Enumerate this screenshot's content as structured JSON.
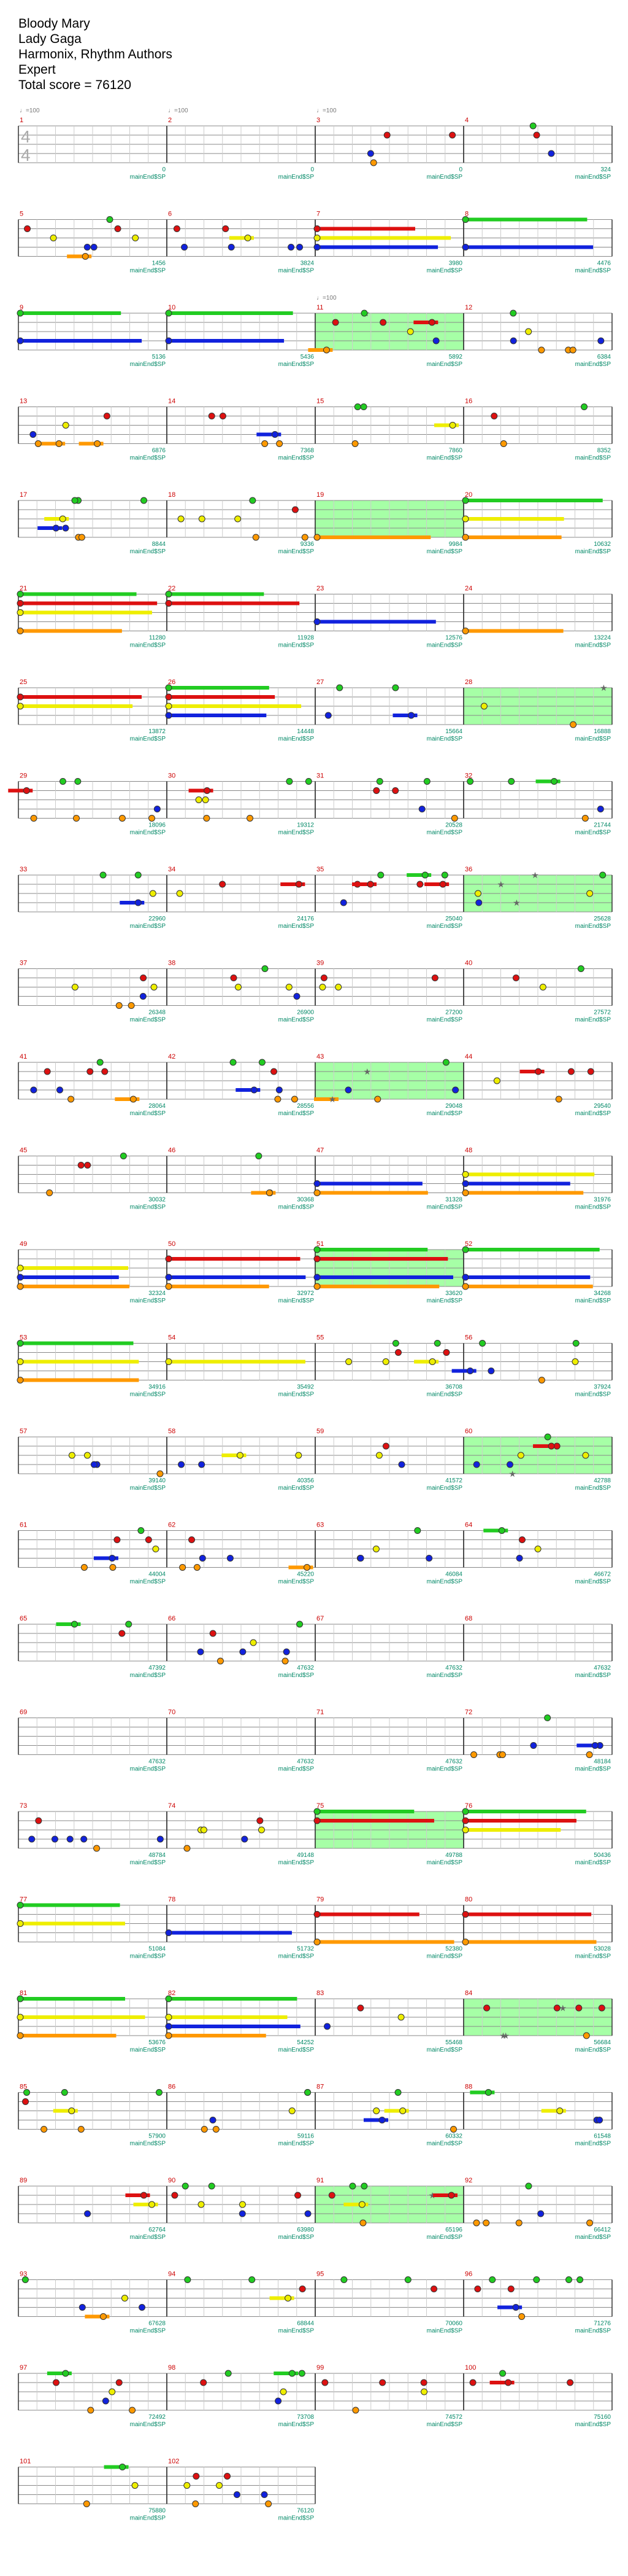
{
  "song": {
    "title": "Bloody Mary",
    "artist": "Lady Gaga",
    "charter": "Harmonix, Rhythm Authors",
    "difficulty": "Expert",
    "total_score_label": "Total score = 76120"
  },
  "notation": {
    "time_signature": [
      "4",
      "4"
    ],
    "tempo_label": "♩=100",
    "spotlight_label": "mainEnd$SP"
  },
  "colors": {
    "green": "#22cc22",
    "red": "#dd1111",
    "yellow": "#eeee00",
    "blue": "#1122dd",
    "orange": "#ff9900",
    "star_power": "#88ff88",
    "measure_number": "#cc0000",
    "score_text": "#008866",
    "tick_text": "#999999"
  },
  "measures": [
    {
      "n": 1,
      "score": 0,
      "tempo": true
    },
    {
      "n": 2,
      "score": 0,
      "tempo": true
    },
    {
      "n": 3,
      "score": 0,
      "tempo": true,
      "notes": "x"
    },
    {
      "n": 4,
      "score": 324,
      "notes": "x"
    },
    {
      "n": 5,
      "score": 1456,
      "notes": "x"
    },
    {
      "n": 6,
      "score": 3824,
      "notes": "x"
    },
    {
      "n": 7,
      "score": 3980,
      "notes": "s"
    },
    {
      "n": 8,
      "score": 4476,
      "notes": "s"
    },
    {
      "n": 9,
      "score": 5136,
      "notes": "s"
    },
    {
      "n": 10,
      "score": 5436,
      "notes": "s"
    },
    {
      "n": 11,
      "score": 5892,
      "tempo": true,
      "sp": true,
      "notes": "x"
    },
    {
      "n": 12,
      "score": 6384,
      "notes": "x"
    },
    {
      "n": 13,
      "score": 6876,
      "notes": "x"
    },
    {
      "n": 14,
      "score": 7368,
      "notes": "x"
    },
    {
      "n": 15,
      "score": 7860,
      "notes": "x"
    },
    {
      "n": 16,
      "score": 8352,
      "notes": "x"
    },
    {
      "n": 17,
      "score": 8844,
      "notes": "x"
    },
    {
      "n": 18,
      "score": 9336,
      "notes": "x"
    },
    {
      "n": 19,
      "score": 9984,
      "sp": true,
      "notes": "s"
    },
    {
      "n": 20,
      "score": 10632,
      "notes": "s"
    },
    {
      "n": 21,
      "score": 11280,
      "notes": "s"
    },
    {
      "n": 22,
      "score": 11928,
      "notes": "s"
    },
    {
      "n": 23,
      "score": 12576,
      "notes": "s"
    },
    {
      "n": 24,
      "score": 13224,
      "notes": "s"
    },
    {
      "n": 25,
      "score": 13872,
      "notes": "s"
    },
    {
      "n": 26,
      "score": 14448,
      "notes": "s"
    },
    {
      "n": 27,
      "score": 15664,
      "notes": "x"
    },
    {
      "n": 28,
      "score": 16888,
      "sp": true,
      "notes": "x"
    },
    {
      "n": 29,
      "score": 18096,
      "notes": "x"
    },
    {
      "n": 30,
      "score": 19312,
      "notes": "x"
    },
    {
      "n": 31,
      "score": 20528,
      "notes": "x"
    },
    {
      "n": 32,
      "score": 21744,
      "notes": "x"
    },
    {
      "n": 33,
      "score": 22960,
      "notes": "x"
    },
    {
      "n": 34,
      "score": 24176,
      "notes": "x"
    },
    {
      "n": 35,
      "score": 25040,
      "notes": "x"
    },
    {
      "n": 36,
      "score": 25628,
      "sp": true,
      "notes": "x"
    },
    {
      "n": 37,
      "score": 26348,
      "notes": "x"
    },
    {
      "n": 38,
      "score": 26900,
      "notes": "x"
    },
    {
      "n": 39,
      "score": 27200,
      "notes": "x"
    },
    {
      "n": 40,
      "score": 27572,
      "notes": "x"
    },
    {
      "n": 41,
      "score": 28064,
      "notes": "x"
    },
    {
      "n": 42,
      "score": 28556,
      "notes": "x"
    },
    {
      "n": 43,
      "score": 29048,
      "sp": true,
      "notes": "x"
    },
    {
      "n": 44,
      "score": 29540,
      "notes": "x"
    },
    {
      "n": 45,
      "score": 30032,
      "notes": "x"
    },
    {
      "n": 46,
      "score": 30368,
      "notes": "x"
    },
    {
      "n": 47,
      "score": 31328,
      "notes": "s"
    },
    {
      "n": 48,
      "score": 31976,
      "notes": "s"
    },
    {
      "n": 49,
      "score": 32324,
      "notes": "s"
    },
    {
      "n": 50,
      "score": 32972,
      "notes": "s"
    },
    {
      "n": 51,
      "score": 33620,
      "sp": true,
      "notes": "s"
    },
    {
      "n": 52,
      "score": 34268,
      "notes": "s"
    },
    {
      "n": 53,
      "score": 34916,
      "notes": "s"
    },
    {
      "n": 54,
      "score": 35492,
      "notes": "s"
    },
    {
      "n": 55,
      "score": 36708,
      "notes": "x"
    },
    {
      "n": 56,
      "score": 37924,
      "notes": "x"
    },
    {
      "n": 57,
      "score": 39140,
      "notes": "x"
    },
    {
      "n": 58,
      "score": 40356,
      "notes": "x"
    },
    {
      "n": 59,
      "score": 41572,
      "notes": "x"
    },
    {
      "n": 60,
      "score": 42788,
      "sp": true,
      "notes": "x"
    },
    {
      "n": 61,
      "score": 44004,
      "notes": "x"
    },
    {
      "n": 62,
      "score": 45220,
      "notes": "x"
    },
    {
      "n": 63,
      "score": 46084,
      "notes": "x"
    },
    {
      "n": 64,
      "score": 46672,
      "notes": "x"
    },
    {
      "n": 65,
      "score": 47392,
      "notes": "x"
    },
    {
      "n": 66,
      "score": 47632,
      "notes": "x"
    },
    {
      "n": 67,
      "score": 47632
    },
    {
      "n": 68,
      "score": 47632
    },
    {
      "n": 69,
      "score": 47632
    },
    {
      "n": 70,
      "score": 47632
    },
    {
      "n": 71,
      "score": 47632
    },
    {
      "n": 72,
      "score": 48184,
      "notes": "x"
    },
    {
      "n": 73,
      "score": 48784,
      "notes": "x"
    },
    {
      "n": 74,
      "score": 49148,
      "notes": "x"
    },
    {
      "n": 75,
      "score": 49788,
      "sp": true,
      "notes": "s"
    },
    {
      "n": 76,
      "score": 50436,
      "notes": "s"
    },
    {
      "n": 77,
      "score": 51084,
      "notes": "s"
    },
    {
      "n": 78,
      "score": 51732,
      "notes": "s"
    },
    {
      "n": 79,
      "score": 52380,
      "notes": "s"
    },
    {
      "n": 80,
      "score": 53028,
      "notes": "s"
    },
    {
      "n": 81,
      "score": 53676,
      "notes": "s"
    },
    {
      "n": 82,
      "score": 54252,
      "notes": "s"
    },
    {
      "n": 83,
      "score": 55468,
      "notes": "x"
    },
    {
      "n": 84,
      "score": 56684,
      "sp": true,
      "notes": "x"
    },
    {
      "n": 85,
      "score": 57900,
      "notes": "x"
    },
    {
      "n": 86,
      "score": 59116,
      "notes": "x"
    },
    {
      "n": 87,
      "score": 60332,
      "notes": "x"
    },
    {
      "n": 88,
      "score": 61548,
      "notes": "x"
    },
    {
      "n": 89,
      "score": 62764,
      "notes": "x"
    },
    {
      "n": 90,
      "score": 63980,
      "notes": "x"
    },
    {
      "n": 91,
      "score": 65196,
      "sp": true,
      "notes": "x"
    },
    {
      "n": 92,
      "score": 66412,
      "notes": "x"
    },
    {
      "n": 93,
      "score": 67628,
      "notes": "x"
    },
    {
      "n": 94,
      "score": 68844,
      "notes": "x"
    },
    {
      "n": 95,
      "score": 70060,
      "notes": "x"
    },
    {
      "n": 96,
      "score": 71276,
      "notes": "x"
    },
    {
      "n": 97,
      "score": 72492,
      "notes": "x"
    },
    {
      "n": 98,
      "score": 73708,
      "notes": "x"
    },
    {
      "n": 99,
      "score": 74572,
      "notes": "x"
    },
    {
      "n": 100,
      "score": 75160,
      "notes": "x"
    },
    {
      "n": 101,
      "score": 75880,
      "notes": "x"
    },
    {
      "n": 102,
      "score": 76120,
      "notes": "x"
    }
  ]
}
